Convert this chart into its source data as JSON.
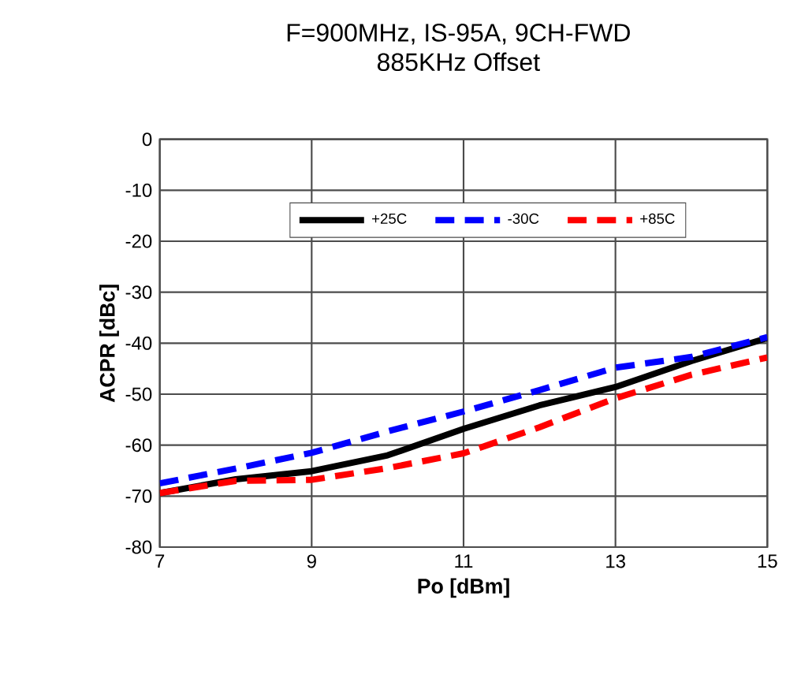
{
  "chart_data": {
    "type": "line",
    "title": "F=900MHz, IS-95A, 9CH-FWD",
    "subtitle": "885KHz Offset",
    "xlabel": "Po [dBm]",
    "ylabel": "ACPR [dBc]",
    "x": [
      7,
      8,
      9,
      10,
      11,
      12,
      13,
      14,
      15
    ],
    "series": [
      {
        "name": "+25C",
        "color": "#000000",
        "line_style": "solid",
        "values": [
          -69.4,
          -66.7,
          -65.1,
          -62,
          -56.8,
          -52.2,
          -48.6,
          -43.5,
          -39
        ]
      },
      {
        "name": "-30C",
        "color": "#0000ff",
        "line_style": "dashed",
        "values": [
          -67.5,
          -64.6,
          -61.5,
          -57.3,
          -53.4,
          -49.2,
          -44.8,
          -42.7,
          -38.8
        ]
      },
      {
        "name": "+85C",
        "color": "#ff0000",
        "line_style": "dashed",
        "values": [
          -69.4,
          -67,
          -66.8,
          -64.5,
          -61.6,
          -56.5,
          -50.8,
          -46.2,
          -42.8
        ]
      }
    ],
    "xlim": [
      7,
      15
    ],
    "xticks": [
      7,
      9,
      11,
      13,
      15
    ],
    "ylim": [
      -80,
      0
    ],
    "yticks": [
      -80,
      -70,
      -60,
      -50,
      -40,
      -30,
      -20,
      -10,
      0
    ],
    "grid": true,
    "legend": "top",
    "marker": "none"
  }
}
